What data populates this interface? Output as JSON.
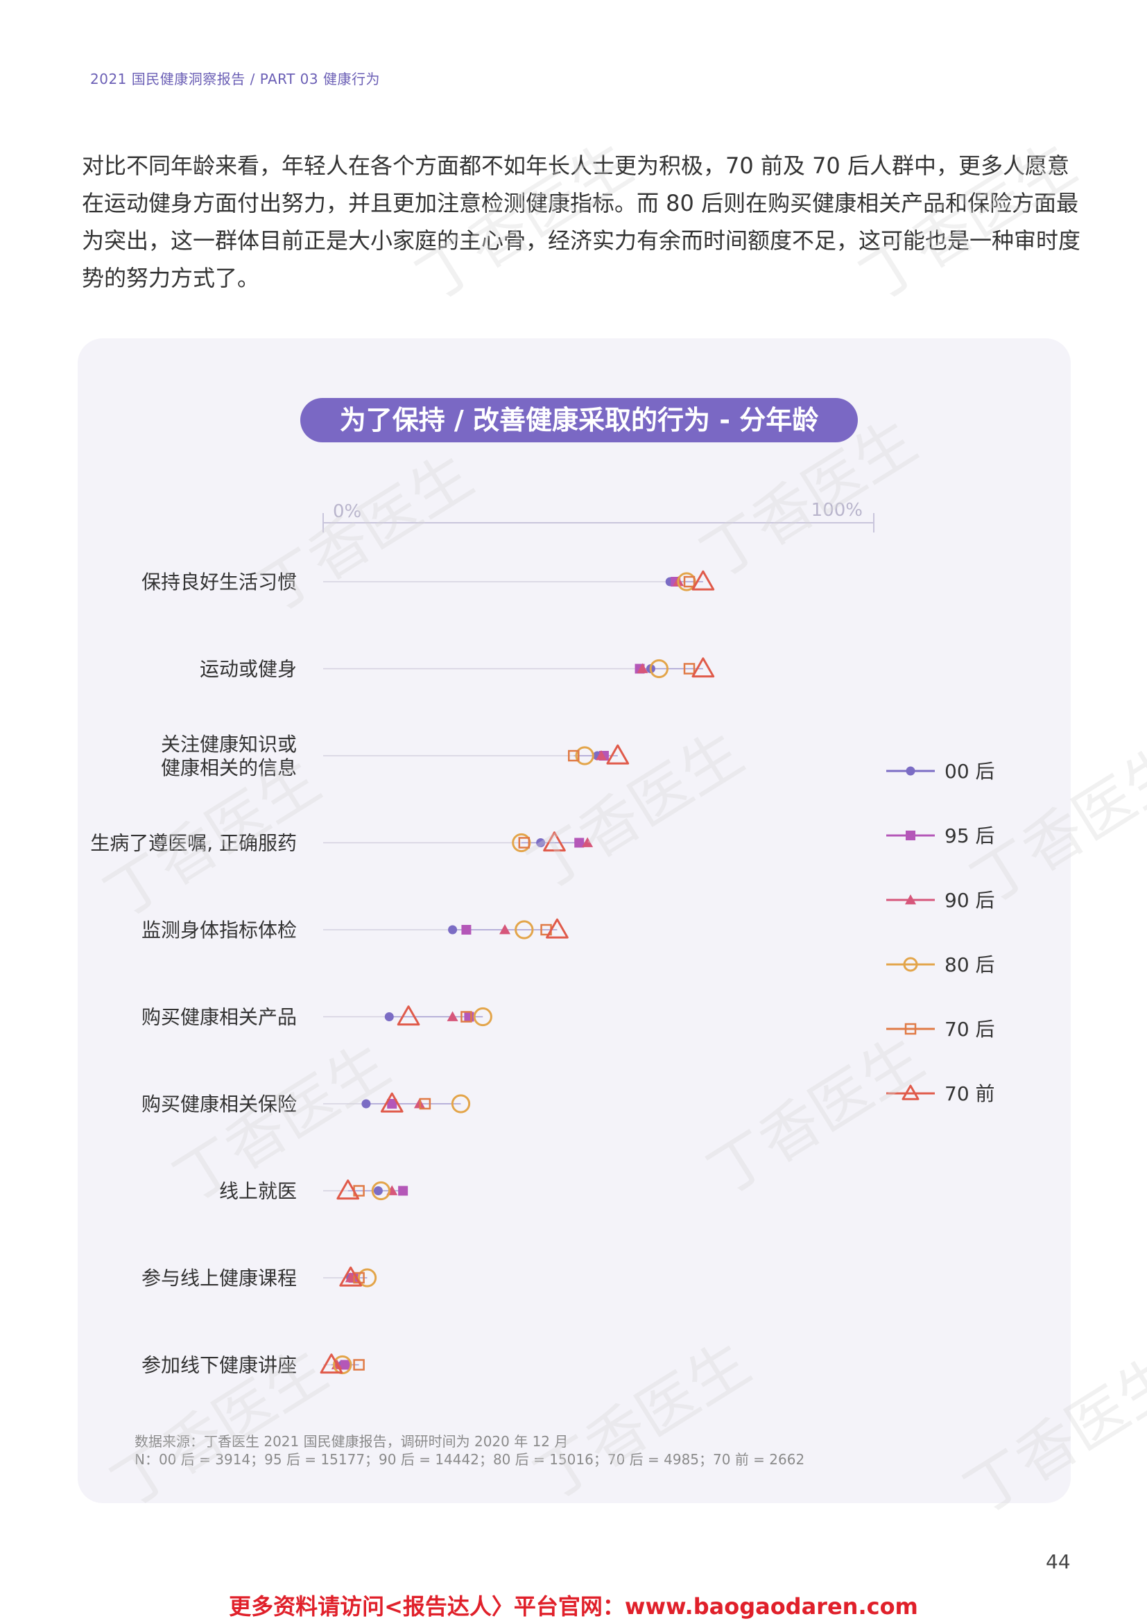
{
  "header": {
    "text": "2021 国民健康洞察报告 / PART 03 健康行为"
  },
  "intro": "对比不同年龄来看，年轻人在各个方面都不如年长人士更为积极，70 前及 70 后人群中，更多人愿意在运动健身方面付出努力，并且更加注意检测健康指标。而 80 后则在购买健康相关产品和保险方面最为突出，这一群体目前正是大小家庭的主心骨，经济实力有余而时间额度不足，这可能也是一种审时度势的努力方式了。",
  "watermark": "丁香医生",
  "chart_data": {
    "type": "scatter",
    "title": "为了保持 / 改善健康采取的行为 - 分年龄",
    "axis": {
      "min_label": "0%",
      "max_label": "100%",
      "range": [
        0,
        100
      ]
    },
    "categories": [
      [
        "保持良好生活习惯"
      ],
      [
        "运动或健身"
      ],
      [
        "关注健康知识或",
        "健康相关的信息"
      ],
      [
        "生病了遵医嘱, 正确服药"
      ],
      [
        "监测身体指标体检"
      ],
      [
        "购买健康相关产品"
      ],
      [
        "购买健康相关保险"
      ],
      [
        "线上就医"
      ],
      [
        "参与线上健康课程"
      ],
      [
        "参加线下健康讲座"
      ]
    ],
    "series": [
      {
        "name": "00 后",
        "marker": "dot",
        "color": "#7b6cc4",
        "values": [
          63,
          59.5,
          49.8,
          39.5,
          23.5,
          12,
          7.8,
          10,
          5,
          3.5
        ]
      },
      {
        "name": "95 后",
        "marker": "square",
        "color": "#b457b8",
        "values": [
          64,
          57.5,
          51,
          46.5,
          26,
          26.5,
          12.5,
          14.5,
          5.5,
          4
        ]
      },
      {
        "name": "90 后",
        "marker": "triangle",
        "color": "#d6567a",
        "values": [
          64.5,
          58,
          50.5,
          48,
          33,
          23.5,
          17.5,
          12.5,
          5,
          2.5
        ]
      },
      {
        "name": "80 后",
        "marker": "circle",
        "color": "#e3a54a",
        "values": [
          66,
          61,
          47.5,
          36,
          36.5,
          29,
          25,
          10.5,
          8,
          3.5
        ]
      },
      {
        "name": "70 后",
        "marker": "open-square",
        "color": "#e07a45",
        "values": [
          66.5,
          66.5,
          45.5,
          36.5,
          40.5,
          26,
          18.5,
          6.5,
          6.5,
          6.5
        ]
      },
      {
        "name": "70 前",
        "marker": "open-triangle",
        "color": "#e05a4a",
        "values": [
          69,
          69,
          53.5,
          42,
          42.5,
          15.5,
          12.5,
          4.5,
          5,
          1.5
        ]
      }
    ]
  },
  "source": {
    "line1": "数据来源：丁香医生 2021 国民健康报告，调研时间为 2020 年 12 月",
    "line2": "N：00 后 = 3914；95 后 = 15177；90 后 = 14442；80 后 = 15016；70 后 = 4985；70 前 = 2662"
  },
  "page_number": "44",
  "footer": "更多资料请访问<报告达人〉平台官网：www.baogaodaren.com"
}
